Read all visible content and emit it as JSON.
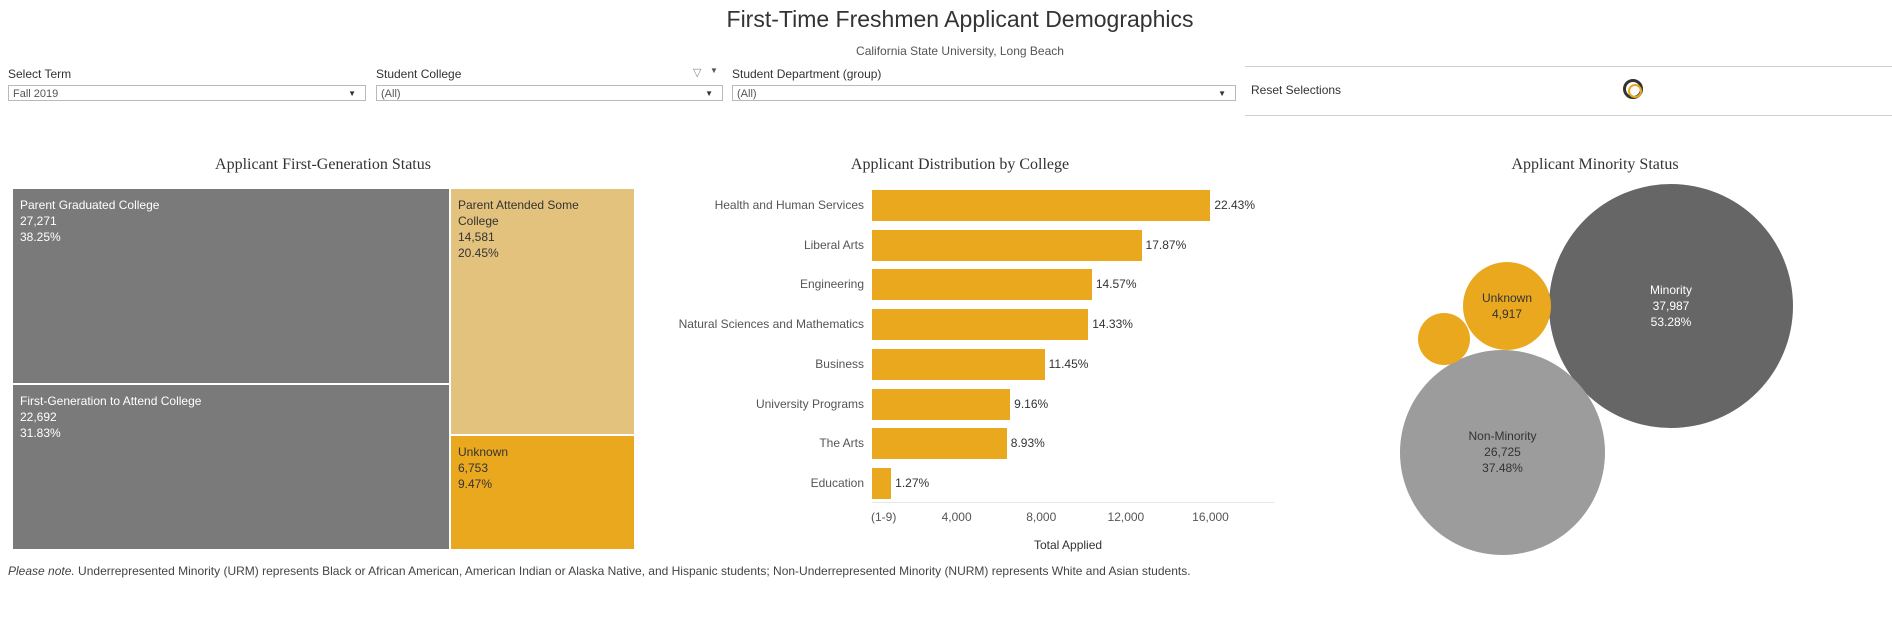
{
  "header": {
    "title": "First-Time Freshmen Applicant Demographics",
    "subtitle": "California State University, Long Beach"
  },
  "filters": {
    "term": {
      "label": "Select Term",
      "value": "Fall 2019"
    },
    "college": {
      "label": "Student College",
      "value": "(All)"
    },
    "department": {
      "label": "Student Department  (group)",
      "value": "(All)"
    },
    "reset_label": "Reset Selections"
  },
  "colors": {
    "gold": "#eaa81f",
    "light_gold": "#e3c27e",
    "dark_gray": "#7a7a7a",
    "mid_gray": "#9c9c9c",
    "charcoal": "#666666"
  },
  "chart_data": [
    {
      "type": "treemap",
      "title": "Applicant First-Generation Status",
      "items": [
        {
          "label": "Parent Graduated College",
          "count": "27,271",
          "pct": "38.25%",
          "value": 27271
        },
        {
          "label": "First-Generation to Attend College",
          "count": "22,692",
          "pct": "31.83%",
          "value": 22692
        },
        {
          "label": "Parent Attended Some College",
          "count": "14,581",
          "pct": "20.45%",
          "value": 14581
        },
        {
          "label": "Unknown",
          "count": "6,753",
          "pct": "9.47%",
          "value": 6753
        }
      ]
    },
    {
      "type": "bar",
      "title": "Applicant Distribution by College",
      "xlabel": "Total Applied",
      "categories": [
        "Health and Human Services",
        "Liberal Arts",
        "Engineering",
        "Natural Sciences and Mathematics",
        "Business",
        "University Programs",
        "The Arts",
        "Education"
      ],
      "values": [
        15990,
        12740,
        10390,
        10220,
        8160,
        6530,
        6370,
        905
      ],
      "labels": [
        "22.43%",
        "17.87%",
        "14.57%",
        "14.33%",
        "11.45%",
        "9.16%",
        "8.93%",
        "1.27%"
      ],
      "xlim": [
        0,
        19000
      ],
      "ticks": [
        {
          "label": "(1-9)",
          "value": 0
        },
        {
          "label": "4,000",
          "value": 4000
        },
        {
          "label": "8,000",
          "value": 8000
        },
        {
          "label": "12,000",
          "value": 12000
        },
        {
          "label": "16,000",
          "value": 16000
        }
      ]
    },
    {
      "type": "bubble",
      "title": "Applicant Minority Status",
      "items": [
        {
          "label": "Minority",
          "count": "37,987",
          "pct": "53.28%",
          "value": 37987
        },
        {
          "label": "Non-Minority",
          "count": "26,725",
          "pct": "37.48%",
          "value": 26725
        },
        {
          "label": "Unknown",
          "count": "4,917",
          "pct": "",
          "value": 4917
        },
        {
          "label": "",
          "count": "",
          "pct": "",
          "value": 1600
        }
      ]
    }
  ],
  "footnote": {
    "lead": "Please note.",
    "text": " Underrepresented Minority (URM) represents Black or African American, American Indian or Alaska Native, and Hispanic students; Non-Underrepresented Minority (NURM) represents White and Asian students."
  }
}
